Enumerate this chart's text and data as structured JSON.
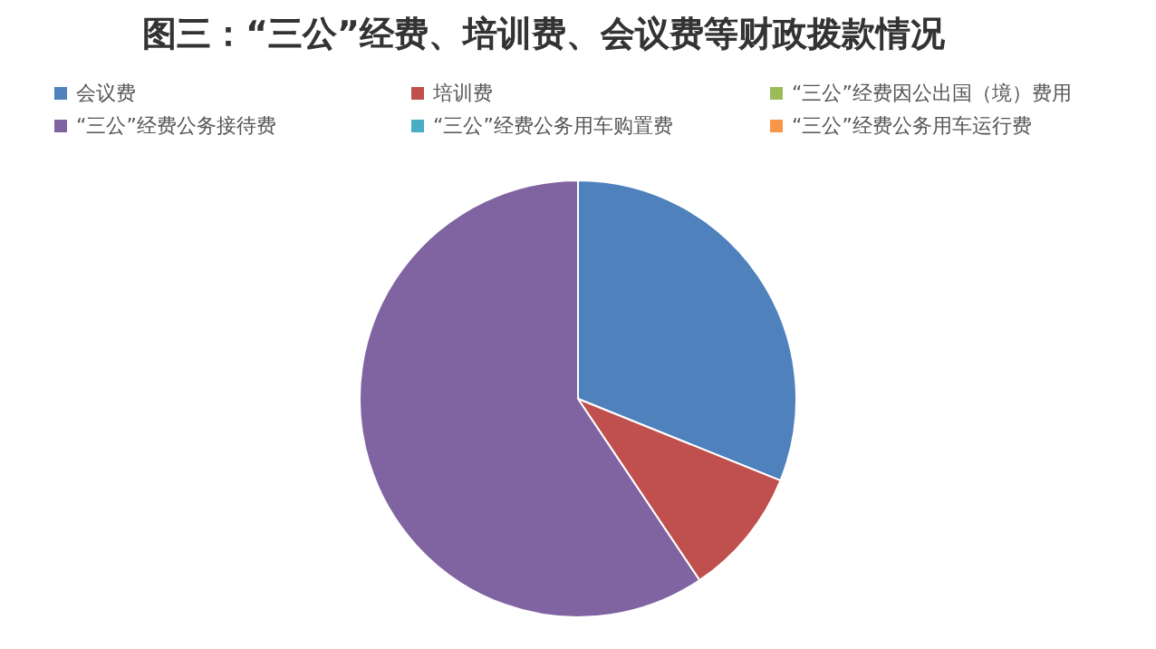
{
  "chart_data": {
    "type": "pie",
    "title": "图三：“三公”经费、培训费、会议费等财政拨款情况",
    "categories": [
      "会议费",
      "培训费",
      "“三公”经费因公出国（境）费用",
      "“三公”经费公务接待费",
      "“三公”经费公务用车购置费",
      "“三公”经费公务用车运行费"
    ],
    "values": [
      31.1,
      9.5,
      0,
      59.4,
      0,
      0
    ],
    "colors": [
      "#4f81bd",
      "#c0504d",
      "#9bbb59",
      "#8064a2",
      "#4bacc6",
      "#f79646"
    ],
    "legend": "top"
  }
}
